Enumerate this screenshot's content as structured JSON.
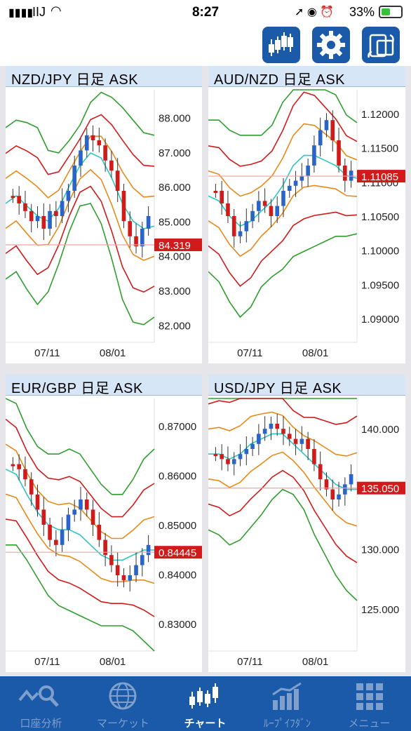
{
  "status_bar": {
    "carrier": "IIJ",
    "time": "8:27",
    "battery": "33%"
  },
  "toolbar": {
    "chart_type_icon": "candlestick-icon",
    "settings_icon": "gear-icon",
    "rotate_icon": "rotate-screen-icon"
  },
  "charts": [
    {
      "title": "NZD/JPY 日足 ASK",
      "price_labels": [
        "88.000",
        "87.000",
        "86.000",
        "85.000",
        "84.000",
        "83.000",
        "82.000"
      ],
      "current_price": "84.319",
      "date_labels": [
        "07/11",
        "08/01"
      ],
      "ylim": [
        81.5,
        88.8
      ]
    },
    {
      "title": "AUD/NZD 日足 ASK",
      "price_labels": [
        "1.12000",
        "1.11500",
        "1.11000",
        "1.10500",
        "1.10000",
        "1.09500",
        "1.09000"
      ],
      "current_price": "1.11085",
      "date_labels": [
        "07/11",
        "08/01"
      ],
      "ylim": [
        1.0865,
        1.1235
      ]
    },
    {
      "title": "EUR/GBP 日足 ASK",
      "price_labels": [
        "0.87000",
        "0.86000",
        "0.85000",
        "0.84000",
        "0.83000"
      ],
      "current_price": "0.84445",
      "date_labels": [
        "07/11",
        "08/01"
      ],
      "ylim": [
        0.8245,
        0.8755
      ]
    },
    {
      "title": "USD/JPY 日足 ASK",
      "price_labels": [
        "140.000",
        "135.000",
        "130.000",
        "125.000"
      ],
      "current_price": "135.050",
      "date_labels": [
        "07/11",
        "08/01"
      ],
      "ylim": [
        121.5,
        142.5
      ]
    }
  ],
  "chart_data": [
    {
      "type": "candlestick",
      "title": "NZD/JPY 日足 ASK",
      "ylim": [
        81.5,
        88.8
      ],
      "x_ticks": [
        "07/11",
        "08/01"
      ],
      "current_price": 84.319
    },
    {
      "type": "candlestick",
      "title": "AUD/NZD 日足 ASK",
      "ylim": [
        1.0865,
        1.1235
      ],
      "x_ticks": [
        "07/11",
        "08/01"
      ],
      "current_price": 1.11085
    },
    {
      "type": "candlestick",
      "title": "EUR/GBP 日足 ASK",
      "ylim": [
        0.8245,
        0.8755
      ],
      "x_ticks": [
        "07/11",
        "08/01"
      ],
      "current_price": 0.84445
    },
    {
      "type": "candlestick",
      "title": "USD/JPY 日足 ASK",
      "ylim": [
        121.5,
        142.5
      ],
      "x_ticks": [
        "07/11",
        "08/01"
      ],
      "current_price": 135.05
    }
  ],
  "tabs": [
    {
      "label": "口座分析",
      "icon": "account-analysis-icon",
      "active": false
    },
    {
      "label": "マーケット",
      "icon": "globe-icon",
      "active": false
    },
    {
      "label": "チャート",
      "icon": "candlestick-icon",
      "active": true
    },
    {
      "label": "ﾙｰﾌﾟｲﾌﾀﾞﾝ",
      "icon": "bar-chart-icon",
      "active": false
    },
    {
      "label": "メニュー",
      "icon": "grid-menu-icon",
      "active": false
    }
  ],
  "colors": {
    "accent": "#1a5aa8",
    "up_candle": "#2a64c8",
    "down_candle": "#d11a1a",
    "price_tag": "#d11a1a",
    "band_outer": "#2f9e2f",
    "band_middle": "#d11a1a",
    "band_inner": "#e68a1a",
    "moving_average": "#2fc4c4"
  }
}
